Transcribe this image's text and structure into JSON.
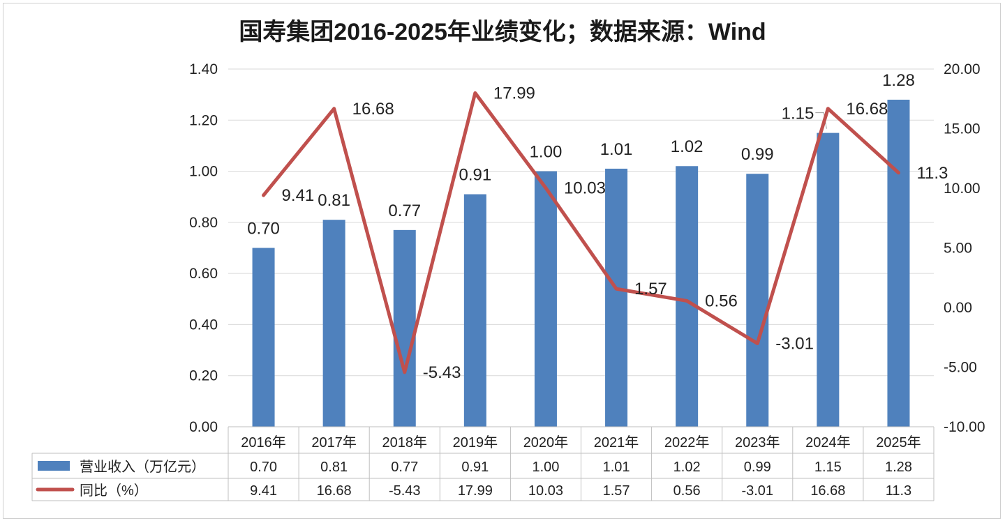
{
  "title": "国寿集团2016-2025年业绩变化；数据来源：Wind",
  "colors": {
    "bar": "#4f81bd",
    "line": "#c0504d",
    "grid": "#d9d9d9"
  },
  "chart_data": {
    "type": "bar",
    "title": "国寿集团2016-2025年业绩变化；数据来源：Wind",
    "categories": [
      "2016年",
      "2017年",
      "2018年",
      "2019年",
      "2020年",
      "2021年",
      "2022年",
      "2023年",
      "2024年",
      "2025年"
    ],
    "series": [
      {
        "name": "营业收入（万亿元）",
        "type": "bar",
        "axis": "left",
        "values": [
          0.7,
          0.81,
          0.77,
          0.91,
          1.0,
          1.01,
          1.02,
          0.99,
          1.15,
          1.28
        ],
        "labels": [
          "0.70",
          "0.81",
          "0.77",
          "0.91",
          "1.00",
          "1.01",
          "1.02",
          "0.99",
          "1.15",
          "1.28"
        ]
      },
      {
        "name": "同比（%）",
        "type": "line",
        "axis": "right",
        "values": [
          9.41,
          16.68,
          -5.43,
          17.99,
          10.03,
          1.57,
          0.56,
          -3.01,
          16.68,
          11.3
        ],
        "labels": [
          "9.41",
          "16.68",
          "-5.43",
          "17.99",
          "10.03",
          "1.57",
          "0.56",
          "-3.01",
          "16.68",
          "11.3"
        ]
      }
    ],
    "y_left": {
      "lim": [
        0,
        1.4
      ],
      "ticks": [
        "0.00",
        "0.20",
        "0.40",
        "0.60",
        "0.80",
        "1.00",
        "1.20",
        "1.40"
      ]
    },
    "y_right": {
      "lim": [
        -10,
        20
      ],
      "ticks": [
        "-10.00",
        "-5.00",
        "0.00",
        "5.00",
        "10.00",
        "15.00",
        "20.00"
      ]
    },
    "grid": true,
    "legend": "data-table"
  }
}
